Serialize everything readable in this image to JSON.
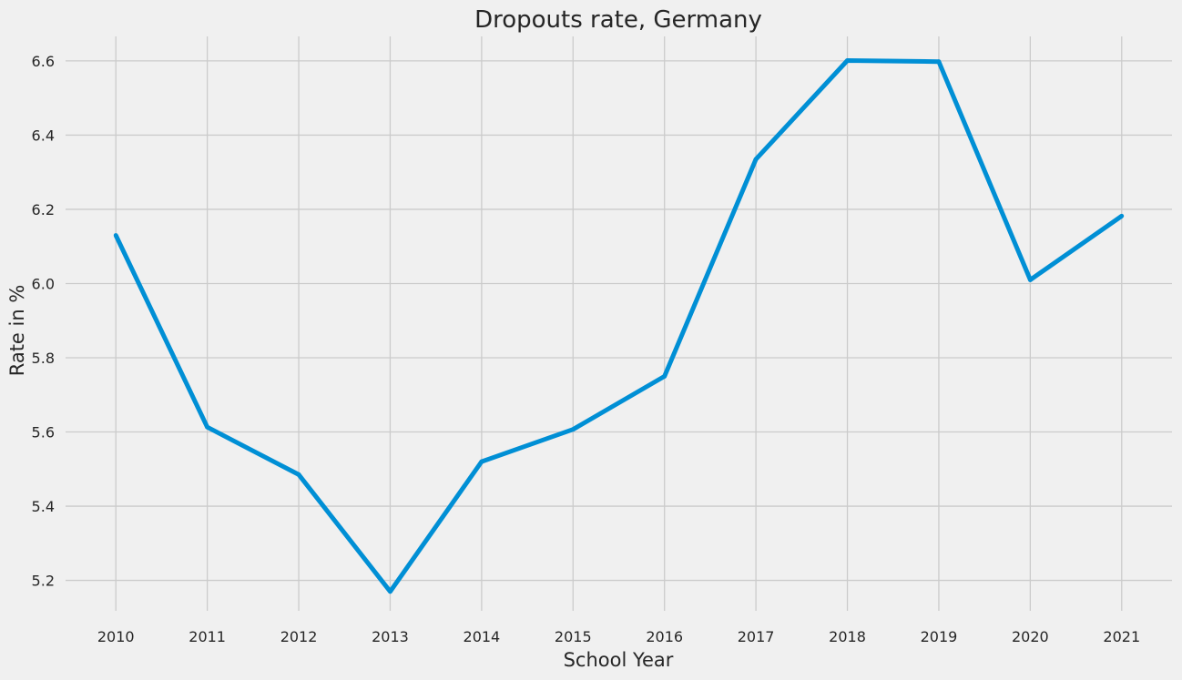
{
  "chart_data": {
    "type": "line",
    "title": "Dropouts rate, Germany",
    "xlabel": "School Year",
    "ylabel": "Rate in %",
    "x": [
      2010,
      2011,
      2012,
      2013,
      2014,
      2015,
      2016,
      2017,
      2018,
      2019,
      2020,
      2021
    ],
    "series": [
      {
        "values": [
          6.13,
          5.613,
          5.485,
          5.17,
          5.52,
          5.607,
          5.75,
          6.335,
          6.601,
          6.598,
          6.01,
          6.182
        ]
      }
    ],
    "xlim": [
      2009.45,
      2021.55
    ],
    "ylim": [
      5.118,
      6.666
    ],
    "x_ticks": [
      "2010",
      "2011",
      "2012",
      "2013",
      "2014",
      "2015",
      "2016",
      "2017",
      "2018",
      "2019",
      "2020",
      "2021"
    ],
    "y_ticks": [
      "5.2",
      "5.4",
      "5.6",
      "5.8",
      "6.0",
      "6.2",
      "6.4",
      "6.6"
    ],
    "grid": true,
    "line_color": "#008fd5",
    "background_color": "#f0f0f0",
    "grid_color": "#cbcbcb"
  }
}
